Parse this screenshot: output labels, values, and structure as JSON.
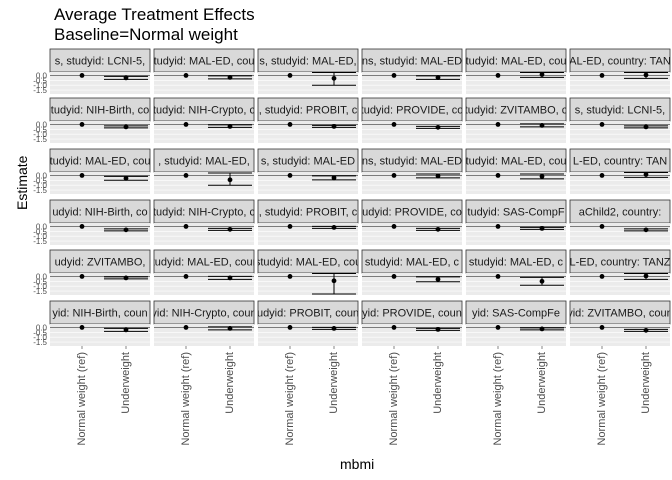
{
  "chart_data": {
    "type": "scatter",
    "title": "Average Treatment Effects",
    "subtitle": "Baseline=Normal weight",
    "xlabel": "mbmi",
    "ylabel": "Estimate",
    "categories": [
      "Normal weight (ref)",
      "Underweight"
    ],
    "y_tick_labels": [
      "0.0",
      "-0.5",
      "-1.0",
      "-1.5"
    ],
    "ylim": [
      -1.9,
      0.35
    ],
    "grid": true,
    "legend": "none",
    "colors": {
      "panel_bg": "#ebebeb",
      "strip_bg": "#d9d9d9",
      "strip_border": "#333333",
      "grid": "#ffffff",
      "point": "#000000"
    },
    "facets": [
      {
        "label": "s, studyid: LCNI-5, ",
        "values": [
          0,
          -0.25
        ],
        "lower": [
          0,
          -0.4
        ],
        "upper": [
          0,
          -0.1
        ]
      },
      {
        "label": "tudyid: MAL-ED, cou",
        "values": [
          0,
          -0.2
        ],
        "lower": [
          0,
          -0.35
        ],
        "upper": [
          0,
          -0.05
        ]
      },
      {
        "label": "s, studyid: MAL-ED,",
        "values": [
          0,
          -0.3
        ],
        "lower": [
          0,
          -1.0
        ],
        "upper": [
          0,
          0.3
        ]
      },
      {
        "label": "ns, studyid: MAL-ED",
        "values": [
          0,
          -0.22
        ],
        "lower": [
          0,
          -0.4
        ],
        "upper": [
          0,
          -0.05
        ]
      },
      {
        "label": "tudyid: MAL-ED, cou",
        "values": [
          0,
          0.1
        ],
        "lower": [
          0,
          -0.2
        ],
        "upper": [
          0,
          0.3
        ]
      },
      {
        "label": "AL-ED, country: TAN",
        "values": [
          0,
          0.05
        ],
        "lower": [
          0,
          -0.3
        ],
        "upper": [
          0,
          0.3
        ]
      },
      {
        "label": "tudyid: NIH-Birth, co",
        "values": [
          0,
          -0.25
        ],
        "lower": [
          0,
          -0.35
        ],
        "upper": [
          0,
          -0.15
        ]
      },
      {
        "label": "tudyid: NIH-Crypto, c",
        "values": [
          0,
          -0.2
        ],
        "lower": [
          0,
          -0.3
        ],
        "upper": [
          0,
          -0.05
        ]
      },
      {
        "label": ", studyid: PROBIT, c",
        "values": [
          0,
          -0.2
        ],
        "lower": [
          0,
          -0.3
        ],
        "upper": [
          0,
          -0.1
        ]
      },
      {
        "label": "tudyid: PROVIDE, co",
        "values": [
          0,
          -0.3
        ],
        "lower": [
          0,
          -0.4
        ],
        "upper": [
          0,
          -0.2
        ]
      },
      {
        "label": "tudyid: ZVITAMBO, c",
        "values": [
          0,
          -0.1
        ],
        "lower": [
          0,
          -0.25
        ],
        "upper": [
          0,
          0.05
        ]
      },
      {
        "label": "s, studyid: LCNI-5, ",
        "values": [
          0,
          -0.25
        ],
        "lower": [
          0,
          -0.35
        ],
        "upper": [
          0,
          -0.15
        ]
      },
      {
        "label": "tudyid: MAL-ED, cou",
        "values": [
          0,
          -0.3
        ],
        "lower": [
          0,
          -0.5
        ],
        "upper": [
          0,
          -0.1
        ]
      },
      {
        "label": ", studyid: MAL-ED,",
        "values": [
          0,
          -0.45
        ],
        "lower": [
          0,
          -1.0
        ],
        "upper": [
          0,
          0.25
        ]
      },
      {
        "label": "s, studyid: MAL-ED",
        "values": [
          0,
          -0.25
        ],
        "lower": [
          0,
          -0.45
        ],
        "upper": [
          0,
          -0.05
        ]
      },
      {
        "label": "ns, studyid: MAL-ED",
        "values": [
          0,
          -0.05
        ],
        "lower": [
          0,
          -0.25
        ],
        "upper": [
          0,
          0.15
        ]
      },
      {
        "label": "tudyid: MAL-ED, cou",
        "values": [
          0,
          -0.1
        ],
        "lower": [
          0,
          -0.35
        ],
        "upper": [
          0,
          0.15
        ]
      },
      {
        "label": "L-ED, country: TAN",
        "values": [
          0,
          0.1
        ],
        "lower": [
          0,
          -0.2
        ],
        "upper": [
          0,
          0.3
        ]
      },
      {
        "label": "udyid: NIH-Birth, co",
        "values": [
          0,
          -0.35
        ],
        "lower": [
          0,
          -0.45
        ],
        "upper": [
          0,
          -0.25
        ]
      },
      {
        "label": "tudyid: NIH-Crypto, c",
        "values": [
          0,
          -0.3
        ],
        "lower": [
          0,
          -0.4
        ],
        "upper": [
          0,
          -0.2
        ]
      },
      {
        "label": ", studyid: PROBIT, c",
        "values": [
          0,
          -0.1
        ],
        "lower": [
          0,
          -0.2
        ],
        "upper": [
          0,
          0.0
        ]
      },
      {
        "label": "udyid: PROVIDE, co",
        "values": [
          0,
          -0.3
        ],
        "lower": [
          0,
          -0.4
        ],
        "upper": [
          0,
          -0.2
        ]
      },
      {
        "label": "tudyid: SAS-CompF",
        "values": [
          0,
          -0.2
        ],
        "lower": [
          0,
          -0.3
        ],
        "upper": [
          0,
          -0.1
        ]
      },
      {
        "label": "aChild2, country: ",
        "values": [
          0,
          -0.35
        ],
        "lower": [
          0,
          -0.45
        ],
        "upper": [
          0,
          -0.25
        ]
      },
      {
        "label": "udyid: ZVITAMBO, ",
        "values": [
          0,
          -0.15
        ],
        "lower": [
          0,
          -0.25
        ],
        "upper": [
          0,
          -0.05
        ]
      },
      {
        "label": "studyid: MAL-ED, count",
        "values": [
          0,
          -0.15
        ],
        "lower": [
          0,
          -0.3
        ],
        "upper": [
          0,
          0.0
        ]
      },
      {
        "label": "studyid: MAL-ED, cou",
        "values": [
          0,
          -0.45
        ],
        "lower": [
          0,
          -1.8
        ],
        "upper": [
          0,
          0.3
        ]
      },
      {
        "label": "studyid: MAL-ED, c",
        "values": [
          0,
          -0.3
        ],
        "lower": [
          0,
          -0.55
        ],
        "upper": [
          0,
          -0.05
        ]
      },
      {
        "label": "studyid: MAL-ED, c",
        "values": [
          0,
          -0.5
        ],
        "lower": [
          0,
          -0.9
        ],
        "upper": [
          0,
          -0.1
        ]
      },
      {
        "label": "AL-ED, country: TANZA",
        "values": [
          0,
          0.05
        ],
        "lower": [
          0,
          -0.3
        ],
        "upper": [
          0,
          0.3
        ]
      },
      {
        "label": "yid: NIH-Birth, coun",
        "values": [
          0,
          -0.25
        ],
        "lower": [
          0,
          -0.4
        ],
        "upper": [
          0,
          -0.1
        ]
      },
      {
        "label": "yid: NIH-Crypto, coun",
        "values": [
          0,
          -0.1
        ],
        "lower": [
          0,
          -0.25
        ],
        "upper": [
          0,
          0.05
        ]
      },
      {
        "label": "tudyid: PROBIT, count",
        "values": [
          0,
          -0.1
        ],
        "lower": [
          0,
          -0.2
        ],
        "upper": [
          0,
          0.0
        ]
      },
      {
        "label": "yid: PROVIDE, coun",
        "values": [
          0,
          -0.2
        ],
        "lower": [
          0,
          -0.3
        ],
        "upper": [
          0,
          -0.1
        ]
      },
      {
        "label": "yid: SAS-CompFe",
        "values": [
          0,
          -0.15
        ],
        "lower": [
          0,
          -0.25
        ],
        "upper": [
          0,
          -0.05
        ]
      },
      {
        "label": "yid: ZVITAMBO, coun",
        "values": [
          0,
          -0.3
        ],
        "lower": [
          0,
          -0.4
        ],
        "upper": [
          0,
          -0.2
        ]
      }
    ]
  }
}
